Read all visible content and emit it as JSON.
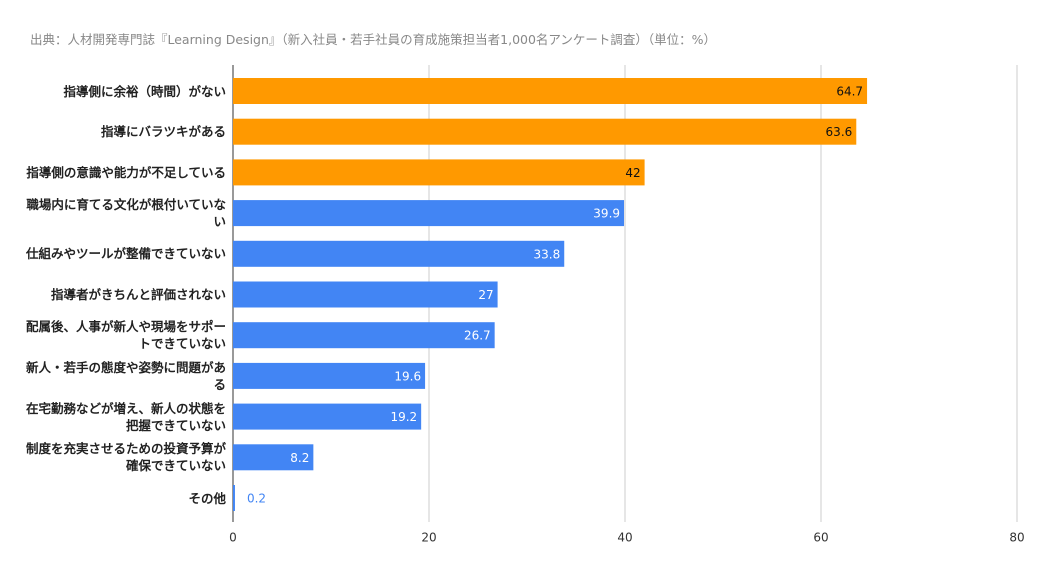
{
  "chart_data": {
    "type": "hbar",
    "title": "出典：人材開発専門誌『Learning Design』（新入社員・若手社員の育成施策担当者1,000名アンケート調査）（単位：%）",
    "categories": [
      "指導側に余裕（時間）がない",
      "指導にバラツキがある",
      "指導側の意識や能力が不足している",
      "職場内に育てる文化が根付いていない",
      "仕組みやツールが整備できていない",
      "指導者がきちんと評価されない",
      "配属後、人事が新人や現場をサポートできていない",
      "新人・若手の態度や姿勢に問題がある",
      "在宅勤務などが増え、新人の状態を把握できていない",
      "制度を充実させるための投資予算が確保できていない",
      "その他"
    ],
    "values": [
      64.7,
      63.6,
      42,
      39.9,
      33.8,
      27,
      26.7,
      19.6,
      19.2,
      8.2,
      0.2
    ],
    "colors": [
      "#ff9900",
      "#ff9900",
      "#ff9900",
      "#4285f4",
      "#4285f4",
      "#4285f4",
      "#4285f4",
      "#4285f4",
      "#4285f4",
      "#4285f4",
      "#4285f4"
    ],
    "xlim": [
      0,
      80
    ],
    "xticks": [
      0,
      20,
      40,
      60,
      80
    ],
    "grid": true
  }
}
